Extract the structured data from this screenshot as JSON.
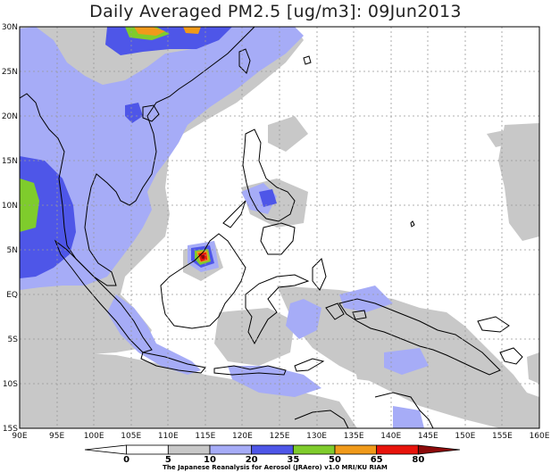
{
  "title": "Daily Averaged PM2.5 [ug/m3]: 09Jun2013",
  "x_ticks": [
    "90E",
    "95E",
    "100E",
    "105E",
    "110E",
    "115E",
    "120E",
    "125E",
    "130E",
    "135E",
    "140E",
    "145E",
    "150E",
    "155E",
    "160E"
  ],
  "y_ticks": [
    "30N",
    "25N",
    "20N",
    "15N",
    "10N",
    "5N",
    "EQ",
    "5S",
    "10S",
    "15S"
  ],
  "colorbar": {
    "labels": [
      "0",
      "5",
      "10",
      "20",
      "35",
      "50",
      "65",
      "80"
    ],
    "colors": [
      "#ffffff",
      "#ffffff",
      "#c8c8c8",
      "#a6acf7",
      "#4e56e8",
      "#7fcc2c",
      "#f09a1a",
      "#e8140c",
      "#8c0a0a"
    ]
  },
  "credit": "The Japanese Reanalysis for Aerosol (JRAero) v1.0 MRI/KU RIAM",
  "palette": {
    "gray": "#c8c8c8",
    "light_blue": "#a6acf7",
    "blue": "#4e56e8",
    "green": "#7fcc2c",
    "orange": "#f09a1a",
    "red": "#e8140c",
    "dark_red": "#8c0a0a"
  }
}
